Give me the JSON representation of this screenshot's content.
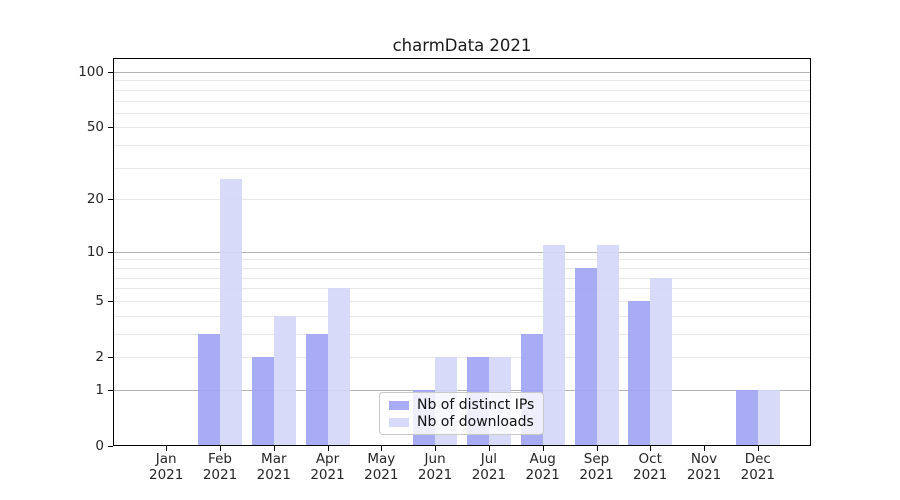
{
  "title": "charmData 2021",
  "chart_data": {
    "type": "bar",
    "title": "charmData 2021",
    "categories": [
      "Jan 2021",
      "Feb 2021",
      "Mar 2021",
      "Apr 2021",
      "May 2021",
      "Jun 2021",
      "Jul 2021",
      "Aug 2021",
      "Sep 2021",
      "Oct 2021",
      "Nov 2021",
      "Dec 2021"
    ],
    "series": [
      {
        "name": "Nb of distinct IPs",
        "color": "#9fa3f4",
        "values": [
          0,
          3,
          2,
          3,
          0,
          1,
          2,
          3,
          8,
          5,
          0,
          1
        ]
      },
      {
        "name": "Nb of downloads",
        "color": "#d4d6f9",
        "values": [
          0,
          26,
          4,
          6,
          0,
          2,
          2,
          11,
          11,
          7,
          0,
          1
        ]
      }
    ],
    "bar_opacity": 0.9,
    "yscale": "symlog-log1p",
    "ylabel": "",
    "xlabel": "",
    "ylim": [
      0,
      119
    ],
    "y_ticks": [
      0,
      1,
      2,
      5,
      10,
      20,
      50,
      100
    ],
    "y_major_gridlines": [
      1,
      10,
      100
    ],
    "y_minor_gridlines": [
      2,
      3,
      4,
      5,
      6,
      7,
      8,
      9,
      20,
      30,
      40,
      50,
      60,
      70,
      80,
      90
    ],
    "grid": true,
    "legend": {
      "position": "lower-center-inside",
      "entries": [
        "Nb of distinct IPs",
        "Nb of downloads"
      ]
    }
  },
  "colors": {
    "background": "#ffffff",
    "axis": "#000000",
    "text": "#262626",
    "grid_major": "#b3b3b3",
    "grid_minor": "#e8e8e8",
    "legend_border": "#c9c9c9"
  }
}
